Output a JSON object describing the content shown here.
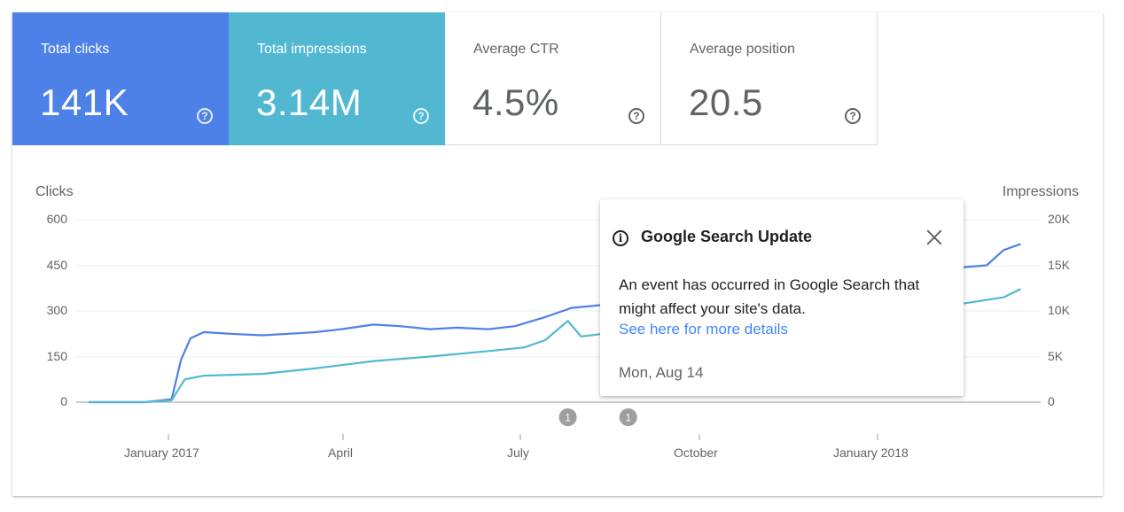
{
  "metrics": [
    {
      "label": "Total clicks",
      "value": "141K",
      "help": "?",
      "color": "#4e81e8"
    },
    {
      "label": "Total impressions",
      "value": "3.14M",
      "help": "?",
      "color": "#52b8d2"
    },
    {
      "label": "Average CTR",
      "value": "4.5%",
      "help": "?"
    },
    {
      "label": "Average position",
      "value": "20.5",
      "help": "?"
    }
  ],
  "popup": {
    "icon": "info-icon",
    "title": "Google Search Update",
    "body": "An event has occurred in Google Search that might affect your site's data.",
    "link": "See here for more details",
    "date": "Mon, Aug 14"
  },
  "chart_data": {
    "type": "line",
    "ylabel_left": "Clicks",
    "ylabel_right": "Impressions",
    "y_left_ticks": [
      "0",
      "150",
      "300",
      "450",
      "600"
    ],
    "y_left_range": [
      0,
      600
    ],
    "y_right_ticks": [
      "0",
      "5K",
      "10K",
      "15K",
      "20K"
    ],
    "y_right_range": [
      0,
      20000
    ],
    "x_ticks": [
      "January 2017",
      "April",
      "July",
      "October",
      "January 2018"
    ],
    "x_range": [
      "2016-11-01",
      "2018-03-15"
    ],
    "annotations": [
      {
        "date": "2017-07-13",
        "label": "1"
      },
      {
        "date": "2017-08-14",
        "label": "1"
      }
    ],
    "grid": true,
    "series": [
      {
        "axis": "left",
        "color": "#4e81e8",
        "points": [
          [
            "2016-11-01",
            0
          ],
          [
            "2016-12-01",
            0
          ],
          [
            "2016-12-15",
            10
          ],
          [
            "2016-12-20",
            140
          ],
          [
            "2016-12-25",
            210
          ],
          [
            "2017-01-01",
            230
          ],
          [
            "2017-01-15",
            225
          ],
          [
            "2017-02-01",
            220
          ],
          [
            "2017-02-15",
            225
          ],
          [
            "2017-03-01",
            230
          ],
          [
            "2017-03-15",
            240
          ],
          [
            "2017-04-01",
            255
          ],
          [
            "2017-04-15",
            250
          ],
          [
            "2017-05-01",
            240
          ],
          [
            "2017-05-15",
            245
          ],
          [
            "2017-06-01",
            240
          ],
          [
            "2017-06-15",
            250
          ],
          [
            "2017-07-01",
            280
          ],
          [
            "2017-07-15",
            310
          ],
          [
            "2017-08-01",
            320
          ],
          [
            "2017-08-10",
            330
          ],
          [
            "2017-09-01",
            310
          ],
          [
            "2017-10-01",
            300
          ],
          [
            "2017-11-01",
            310
          ],
          [
            "2017-12-01",
            320
          ],
          [
            "2018-01-01",
            340
          ],
          [
            "2018-02-01",
            440
          ],
          [
            "2018-02-20",
            450
          ],
          [
            "2018-03-01",
            500
          ],
          [
            "2018-03-10",
            520
          ]
        ]
      },
      {
        "axis": "right",
        "color": "#52b8d2",
        "points": [
          [
            "2016-11-01",
            0
          ],
          [
            "2016-12-01",
            0
          ],
          [
            "2016-12-15",
            200
          ],
          [
            "2016-12-22",
            2500
          ],
          [
            "2017-01-01",
            2900
          ],
          [
            "2017-02-01",
            3100
          ],
          [
            "2017-03-01",
            3700
          ],
          [
            "2017-04-01",
            4500
          ],
          [
            "2017-05-01",
            5000
          ],
          [
            "2017-06-01",
            5600
          ],
          [
            "2017-06-20",
            6000
          ],
          [
            "2017-07-01",
            6800
          ],
          [
            "2017-07-13",
            8900
          ],
          [
            "2017-07-20",
            7200
          ],
          [
            "2017-08-01",
            7500
          ],
          [
            "2017-08-10",
            7800
          ],
          [
            "2017-09-01",
            7900
          ],
          [
            "2017-10-01",
            8100
          ],
          [
            "2017-11-01",
            8500
          ],
          [
            "2017-12-01",
            8800
          ],
          [
            "2018-01-01",
            9000
          ],
          [
            "2018-02-01",
            10600
          ],
          [
            "2018-02-20",
            11200
          ],
          [
            "2018-03-01",
            11500
          ],
          [
            "2018-03-10",
            12400
          ]
        ]
      }
    ]
  }
}
